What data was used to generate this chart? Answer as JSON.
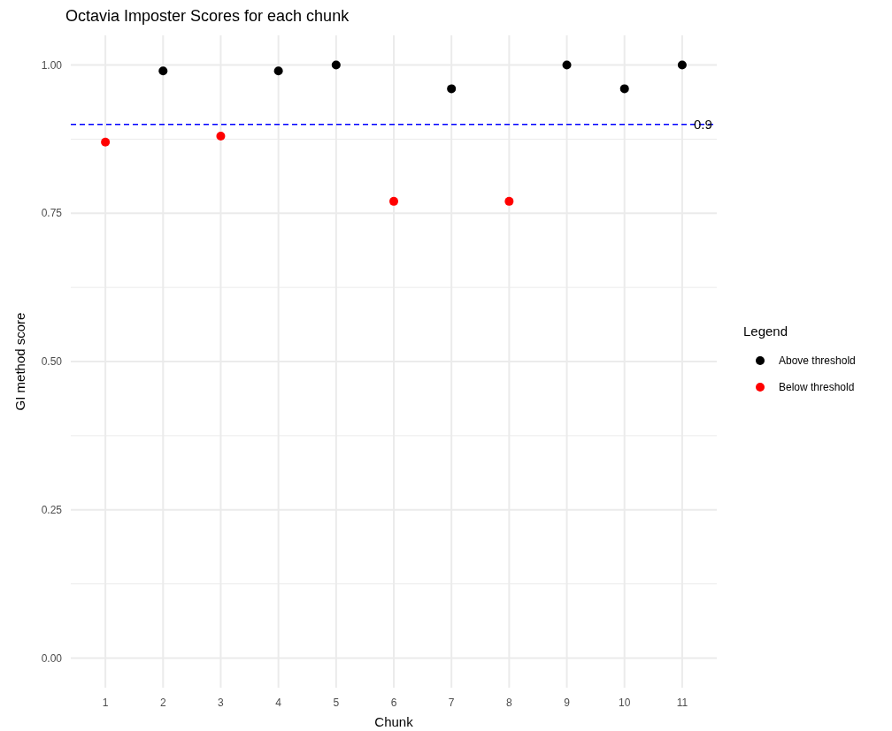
{
  "chart_data": {
    "type": "scatter",
    "title": "Octavia Imposter Scores for each chunk",
    "xlabel": "Chunk",
    "ylabel": "GI method score",
    "legend_title": "Legend",
    "categories": [
      "1",
      "2",
      "3",
      "4",
      "5",
      "6",
      "7",
      "8",
      "9",
      "10",
      "11"
    ],
    "series": [
      {
        "name": "Above threshold",
        "color": "#000000",
        "values": [
          null,
          0.99,
          null,
          0.99,
          1.0,
          null,
          0.96,
          null,
          1.0,
          0.96,
          1.0
        ]
      },
      {
        "name": "Below threshold",
        "color": "#ff0000",
        "values": [
          0.87,
          null,
          0.88,
          null,
          null,
          0.77,
          null,
          0.77,
          null,
          null,
          null
        ]
      }
    ],
    "ylim": [
      -0.05,
      1.05
    ],
    "yticks": [
      {
        "value": 0,
        "label": "0.00"
      },
      {
        "value": 0.25,
        "label": "0.25"
      },
      {
        "value": 0.5,
        "label": "0.50"
      },
      {
        "value": 0.75,
        "label": "0.75"
      },
      {
        "value": 1,
        "label": "1.00"
      }
    ],
    "ref_lines": [
      {
        "axis": "y",
        "value": 0.9,
        "label": "0.9",
        "color": "#0000ff",
        "line_style": "dashed"
      }
    ],
    "grid": true,
    "legend": "right",
    "marker": "circle"
  }
}
